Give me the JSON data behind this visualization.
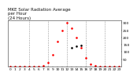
{
  "title": "MKE Solar Radiation Average\nper Hour\n(24 Hours)",
  "hours": [
    0,
    1,
    2,
    3,
    4,
    5,
    6,
    7,
    8,
    9,
    10,
    11,
    12,
    13,
    14,
    15,
    16,
    17,
    18,
    19,
    20,
    21,
    22,
    23
  ],
  "red_series": [
    0,
    0,
    0,
    0,
    0,
    0,
    0,
    3,
    25,
    80,
    170,
    250,
    300,
    265,
    200,
    130,
    60,
    15,
    3,
    0,
    0,
    0,
    0,
    0
  ],
  "black_series": [
    null,
    null,
    null,
    null,
    null,
    null,
    null,
    null,
    null,
    null,
    null,
    null,
    null,
    130,
    140,
    145,
    null,
    null,
    null,
    null,
    null,
    null,
    null,
    null
  ],
  "red_color": "#ff0000",
  "black_color": "#000000",
  "bg_color": "#ffffff",
  "grid_color": "#999999",
  "ylim": [
    0,
    320
  ],
  "ytick_values": [
    50,
    100,
    150,
    200,
    250,
    300
  ],
  "ytick_labels": [
    "50",
    "100",
    "150",
    "200",
    "250",
    "300"
  ],
  "vline_positions": [
    4,
    8,
    12,
    16,
    20
  ],
  "title_fontsize": 4.0,
  "tick_fontsize": 3.2,
  "marker_size": 1.8,
  "xtick_positions": [
    0,
    1,
    2,
    3,
    4,
    5,
    6,
    7,
    8,
    9,
    10,
    11,
    12,
    13,
    14,
    15,
    16,
    17,
    18,
    19,
    20,
    21,
    22,
    23
  ],
  "xtick_labels": [
    "0",
    "1",
    "2",
    "3",
    "4",
    "5",
    "6",
    "7",
    "8",
    "9",
    "10",
    "11",
    "12",
    "13",
    "14",
    "15",
    "16",
    "17",
    "18",
    "19",
    "20",
    "21",
    "22",
    "23"
  ]
}
